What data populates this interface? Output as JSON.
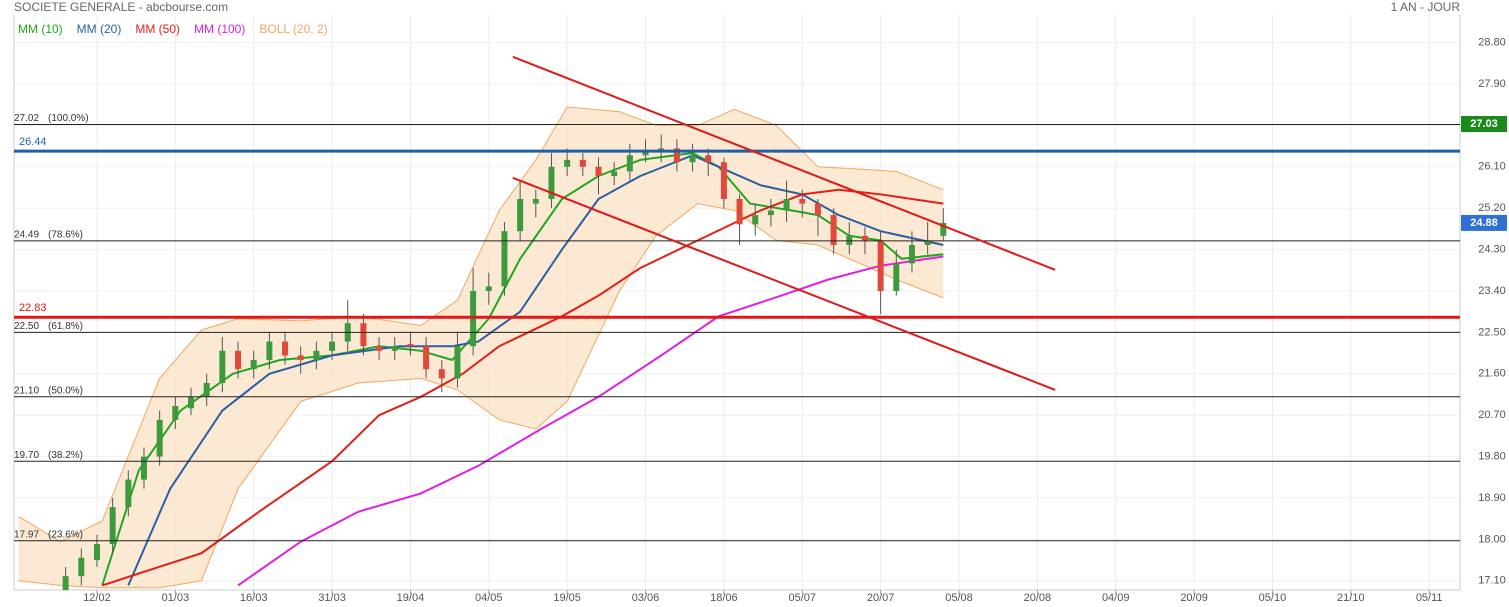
{
  "chart_data": {
    "type": "candlestick",
    "title": "SOCIETE GENERALE - abcbourse.com",
    "period": "1 AN - JOUR",
    "x": [
      9,
      12,
      15,
      18,
      21,
      24,
      27,
      30,
      33,
      36,
      39,
      42,
      45,
      48,
      51,
      54,
      57,
      60,
      63,
      66,
      69,
      72,
      75,
      78,
      81,
      84,
      87,
      90,
      93,
      96,
      99,
      102,
      105,
      108,
      111,
      114,
      117,
      120,
      123,
      126,
      129,
      132,
      135,
      138,
      141,
      144,
      147,
      150,
      153,
      156,
      159,
      162,
      165,
      168,
      171,
      174,
      177
    ],
    "open": [
      16.9,
      17.2,
      17.55,
      17.9,
      18.7,
      19.3,
      19.8,
      20.6,
      20.85,
      21.1,
      21.4,
      22.1,
      21.7,
      21.9,
      22.3,
      22.0,
      21.9,
      22.1,
      22.3,
      22.7,
      22.2,
      22.1,
      22.25,
      22.2,
      21.7,
      21.5,
      22.2,
      23.4,
      23.5,
      24.7,
      25.3,
      25.4,
      26.1,
      26.25,
      26.1,
      25.9,
      26.0,
      26.35,
      26.45,
      26.5,
      26.2,
      26.35,
      26.2,
      25.4,
      24.85,
      25.05,
      25.15,
      25.4,
      25.3,
      25.05,
      24.4,
      24.6,
      24.5,
      23.4,
      24.0,
      24.4,
      24.6
    ],
    "high": [
      17.4,
      17.8,
      18.1,
      18.9,
      19.5,
      20.0,
      20.8,
      21.1,
      21.3,
      21.6,
      22.4,
      22.3,
      22.1,
      22.5,
      22.5,
      22.2,
      22.3,
      22.5,
      23.2,
      22.9,
      22.4,
      22.4,
      22.5,
      22.4,
      21.9,
      22.5,
      23.9,
      23.8,
      24.9,
      25.8,
      25.6,
      26.4,
      26.5,
      26.4,
      26.3,
      26.2,
      26.6,
      26.7,
      26.8,
      26.7,
      26.6,
      26.5,
      26.3,
      25.5,
      25.3,
      25.4,
      25.8,
      25.6,
      25.4,
      25.2,
      24.9,
      24.8,
      24.7,
      24.3,
      24.7,
      24.9,
      25.2
    ],
    "low": [
      16.8,
      17.0,
      17.4,
      17.7,
      18.5,
      19.1,
      19.6,
      20.4,
      20.7,
      20.9,
      21.2,
      21.5,
      21.5,
      21.7,
      21.8,
      21.6,
      21.7,
      21.9,
      22.1,
      22.0,
      21.9,
      21.9,
      22.0,
      21.5,
      21.2,
      21.3,
      22.0,
      23.1,
      23.3,
      24.5,
      25.0,
      25.2,
      25.9,
      25.9,
      25.5,
      25.7,
      25.8,
      26.2,
      26.2,
      26.0,
      26.0,
      25.9,
      25.2,
      24.4,
      24.6,
      24.8,
      24.9,
      25.0,
      24.6,
      24.2,
      24.2,
      24.2,
      22.9,
      23.3,
      23.8,
      24.2,
      24.5
    ],
    "close": [
      17.2,
      17.6,
      17.9,
      18.7,
      19.3,
      19.8,
      20.6,
      20.9,
      21.1,
      21.4,
      22.1,
      21.7,
      21.9,
      22.3,
      22.0,
      21.9,
      22.1,
      22.3,
      22.7,
      22.2,
      22.1,
      22.2,
      22.2,
      21.7,
      21.5,
      22.2,
      23.4,
      23.5,
      24.7,
      25.4,
      25.4,
      26.1,
      26.25,
      26.1,
      25.9,
      26.0,
      26.35,
      26.45,
      26.5,
      26.2,
      26.35,
      26.2,
      25.4,
      24.85,
      25.05,
      25.15,
      25.4,
      25.3,
      25.05,
      24.4,
      24.6,
      24.5,
      23.4,
      24.0,
      24.4,
      24.5,
      24.88
    ],
    "up_color": "#3d9b3d",
    "down_color": "#e0493a",
    "indicators": [
      {
        "name": "MM (10)",
        "color": "#1fa81f",
        "x": [
          16,
          23,
          31,
          41,
          50,
          60,
          69,
          77,
          83,
          90,
          96,
          104,
          111,
          119,
          129,
          134,
          140,
          148,
          153,
          159,
          165,
          169,
          177
        ],
        "values": [
          17.0,
          19.5,
          20.8,
          21.6,
          21.9,
          22.0,
          22.2,
          22.1,
          21.9,
          22.8,
          24.1,
          25.4,
          25.9,
          26.25,
          26.4,
          26.1,
          25.3,
          25.15,
          25.05,
          24.6,
          24.5,
          24.1,
          24.2
        ]
      },
      {
        "name": "MM (20)",
        "color": "#2a5fa0",
        "x": [
          21,
          29,
          39,
          48,
          60,
          73,
          83,
          88,
          96,
          104,
          111,
          119,
          129,
          134,
          142,
          150,
          157,
          165,
          177
        ],
        "values": [
          17.0,
          19.1,
          20.8,
          21.6,
          22.0,
          22.2,
          22.2,
          22.3,
          22.95,
          24.3,
          25.4,
          25.9,
          26.35,
          26.1,
          25.7,
          25.5,
          25.05,
          24.7,
          24.4
        ]
      },
      {
        "name": "MM (50)",
        "color": "#e0201a",
        "x": [
          16,
          35,
          46,
          60,
          69,
          77,
          85,
          92,
          104,
          111,
          119,
          130,
          142,
          150,
          157,
          165,
          177
        ],
        "values": [
          17.0,
          17.7,
          18.6,
          19.7,
          20.7,
          21.1,
          21.6,
          22.2,
          22.85,
          23.3,
          23.9,
          24.5,
          25.15,
          25.5,
          25.6,
          25.5,
          25.3
        ]
      },
      {
        "name": "MM (100)",
        "color": "#e21ee2",
        "x": [
          42,
          54,
          65,
          77,
          88,
          100,
          111,
          123,
          134,
          146,
          155,
          165,
          177
        ],
        "values": [
          17.0,
          17.95,
          18.6,
          19.0,
          19.6,
          20.4,
          21.1,
          22.0,
          22.85,
          23.3,
          23.65,
          23.95,
          24.15
        ]
      }
    ],
    "bollinger": {
      "name": "BOLL (20, 2)",
      "color": "#f0a860",
      "fill": "#fbe3c8",
      "x": [
        0,
        8,
        16,
        27,
        35,
        42,
        54,
        65,
        77,
        84,
        92,
        99,
        105,
        115,
        122,
        130,
        137,
        145,
        153,
        161,
        168,
        177
      ],
      "upper": [
        18.5,
        17.95,
        18.4,
        21.5,
        22.55,
        22.8,
        22.75,
        22.85,
        22.65,
        23.2,
        25.15,
        26.25,
        27.4,
        27.3,
        27.0,
        27.0,
        27.35,
        27.0,
        26.1,
        26.05,
        26.0,
        25.6
      ],
      "lower": [
        17.1,
        17.0,
        16.95,
        16.95,
        17.1,
        19.1,
        21.0,
        21.4,
        21.5,
        21.25,
        20.6,
        20.4,
        21.0,
        23.4,
        24.6,
        25.3,
        25.15,
        24.5,
        24.4,
        24.0,
        23.65,
        23.25
      ]
    },
    "levels": [
      {
        "value": 27.02,
        "label": "27.02",
        "ratio": "(100.0%)"
      },
      {
        "value": 24.49,
        "label": "24.49",
        "ratio": "(78.6%)"
      },
      {
        "value": 22.5,
        "label": "22.50",
        "ratio": "(61.8%)"
      },
      {
        "value": 21.1,
        "label": "21.10",
        "ratio": "(50.0%)"
      },
      {
        "value": 19.7,
        "label": "19.70",
        "ratio": "(38.2%)"
      },
      {
        "value": 17.97,
        "label": "17.97",
        "ratio": "(23.6%)"
      }
    ],
    "level_color": "#222222",
    "support_lines": [
      {
        "value": 26.44,
        "color": "#1f5fa8"
      },
      {
        "value": 22.83,
        "color": "#e01818"
      }
    ],
    "price_tags": [
      {
        "value": 27.03,
        "color": "#1a8a1a"
      },
      {
        "value": 24.88,
        "color": "#2f6fd6"
      }
    ],
    "trendlines": [
      {
        "color": "#e01818",
        "x": [
          94.6,
          198.4
        ],
        "values": [
          28.49,
          23.86
        ]
      },
      {
        "color": "#e01818",
        "x": [
          94.6,
          198.4
        ],
        "values": [
          25.86,
          21.25
        ]
      }
    ],
    "xlim": [
      -0.88,
      275.9
    ],
    "ylim": [
      16.9,
      29.4
    ],
    "xticks": [
      {
        "value": 15,
        "label": "12/02"
      },
      {
        "value": 30,
        "label": "01/03"
      },
      {
        "value": 45,
        "label": "16/03"
      },
      {
        "value": 60,
        "label": "31/03"
      },
      {
        "value": 75,
        "label": "19/04"
      },
      {
        "value": 90,
        "label": "04/05"
      },
      {
        "value": 105,
        "label": "19/05"
      },
      {
        "value": 120,
        "label": "03/06"
      },
      {
        "value": 135,
        "label": "18/06"
      },
      {
        "value": 150,
        "label": "05/07"
      },
      {
        "value": 165,
        "label": "20/07"
      },
      {
        "value": 180,
        "label": "05/08"
      },
      {
        "value": 195,
        "label": "20/08"
      },
      {
        "value": 210,
        "label": "04/09"
      },
      {
        "value": 225,
        "label": "20/09"
      },
      {
        "value": 240,
        "label": "05/10"
      },
      {
        "value": 255,
        "label": "21/10"
      },
      {
        "value": 270,
        "label": "05/11"
      }
    ],
    "yticks": [
      {
        "value": 28.8,
        "label": "28.80"
      },
      {
        "value": 27.9,
        "label": "27.90"
      },
      {
        "value": 27.0,
        "label": "27.00"
      },
      {
        "value": 26.1,
        "label": "26.10"
      },
      {
        "value": 25.2,
        "label": "25.20"
      },
      {
        "value": 24.3,
        "label": "24.30"
      },
      {
        "value": 23.4,
        "label": "23.40"
      },
      {
        "value": 22.5,
        "label": "22.50"
      },
      {
        "value": 21.6,
        "label": "21.60"
      },
      {
        "value": 20.7,
        "label": "20.70"
      },
      {
        "value": 19.8,
        "label": "19.80"
      },
      {
        "value": 18.9,
        "label": "18.90"
      },
      {
        "value": 18.0,
        "label": "18.00"
      },
      {
        "value": 17.1,
        "label": "17.10"
      }
    ],
    "grid": true
  }
}
